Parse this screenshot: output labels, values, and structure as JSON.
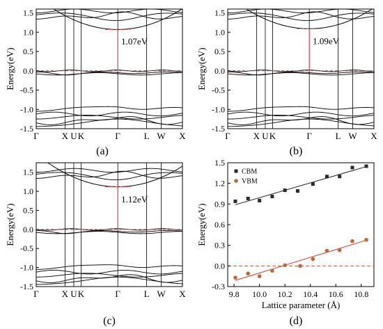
{
  "figure": {
    "panel_labels": [
      "(a)",
      "(b)",
      "(c)",
      "(d)"
    ]
  },
  "chart_data": [
    {
      "type": "line",
      "panel": "(a)",
      "ylabel": "Energy(eV)",
      "ylim": [
        -1.5,
        1.6
      ],
      "yticks": [
        "1.5",
        "1.0",
        "0.5",
        "0.0",
        "-0.5",
        "-1.0",
        "-1.5"
      ],
      "ytick_values": [
        1.5,
        1.0,
        0.5,
        0.0,
        -0.5,
        -1.0,
        -1.5
      ],
      "kpath": [
        "Γ",
        "X",
        "U",
        "K",
        "Γ",
        "L",
        "W",
        "X"
      ],
      "kpath_positions": [
        0,
        0.197,
        0.257,
        0.307,
        0.558,
        0.755,
        0.855,
        1.0
      ],
      "gap_label": "1.07eV",
      "band_gap": 1.07,
      "fermi_level": 0.0,
      "line_color": "#000000",
      "gap_color": "#e8403a"
    },
    {
      "type": "line",
      "panel": "(b)",
      "ylabel": "Energy(eV)",
      "ylim": [
        -1.5,
        1.6
      ],
      "yticks": [
        "1.5",
        "1.0",
        "0.5",
        "0.0",
        "-0.5",
        "-1.0",
        "-1.5"
      ],
      "ytick_values": [
        1.5,
        1.0,
        0.5,
        0.0,
        -0.5,
        -1.0,
        -1.5
      ],
      "kpath": [
        "Γ",
        "X",
        "U",
        "K",
        "Γ",
        "L",
        "W",
        "X"
      ],
      "kpath_positions": [
        0,
        0.197,
        0.257,
        0.307,
        0.558,
        0.755,
        0.855,
        1.0
      ],
      "gap_label": "1.09eV",
      "band_gap": 1.09,
      "fermi_level": 0.0,
      "line_color": "#000000",
      "gap_color": "#e8403a"
    },
    {
      "type": "line",
      "panel": "(c)",
      "ylabel": "Energy(eV)",
      "ylim": [
        -1.5,
        1.75
      ],
      "yticks": [
        "1.5",
        "1.0",
        "0.5",
        "0.0",
        "-0.5",
        "-1.0",
        "-1.5"
      ],
      "ytick_values": [
        1.5,
        1.0,
        0.5,
        0.0,
        -0.5,
        -1.0,
        -1.5
      ],
      "kpath": [
        "Γ",
        "X",
        "U",
        "K",
        "Γ",
        "L",
        "W",
        "X"
      ],
      "kpath_positions": [
        0,
        0.197,
        0.257,
        0.307,
        0.558,
        0.755,
        0.855,
        1.0
      ],
      "gap_label": "1.12eV",
      "band_gap": 1.12,
      "fermi_level": 0.0,
      "line_color": "#000000",
      "gap_color": "#e8403a"
    },
    {
      "type": "scatter",
      "panel": "(d)",
      "xlabel": "Lattice parameter (Å)",
      "ylabel": "Energy(eV)",
      "xlim": [
        9.75,
        10.9
      ],
      "ylim": [
        -0.3,
        1.5
      ],
      "xticks": [
        "9.8",
        "10.0",
        "10.2",
        "10.4",
        "10.6",
        "10.8"
      ],
      "xtick_values": [
        9.8,
        10.0,
        10.2,
        10.4,
        10.6,
        10.8
      ],
      "yticks": [
        "1.5",
        "1.2",
        "0.9",
        "0.6",
        "0.3",
        "0.0",
        "-0.3"
      ],
      "ytick_values": [
        1.5,
        1.2,
        0.9,
        0.6,
        0.3,
        0.0,
        -0.3
      ],
      "reference_line": 0.0,
      "legend_position": "top-left",
      "series": [
        {
          "name": "CBM",
          "color": "#2a2a2a",
          "x": [
            9.81,
            9.91,
            10.0,
            10.1,
            10.2,
            10.3,
            10.42,
            10.53,
            10.63,
            10.73,
            10.84
          ],
          "y": [
            0.94,
            0.98,
            0.95,
            1.01,
            1.1,
            1.09,
            1.19,
            1.3,
            1.3,
            1.43,
            1.45
          ],
          "fit": [
            [
              9.81,
              0.89
            ],
            [
              10.85,
              1.45
            ]
          ]
        },
        {
          "name": "VBM",
          "color": "#b86a3c",
          "x": [
            9.81,
            9.91,
            10.0,
            10.1,
            10.2,
            10.32,
            10.42,
            10.53,
            10.63,
            10.73,
            10.84
          ],
          "y": [
            -0.17,
            -0.11,
            -0.15,
            -0.07,
            0.01,
            0.0,
            0.1,
            0.22,
            0.23,
            0.36,
            0.38
          ],
          "fit": [
            [
              9.81,
              -0.21
            ],
            [
              10.85,
              0.38
            ]
          ]
        }
      ]
    }
  ]
}
